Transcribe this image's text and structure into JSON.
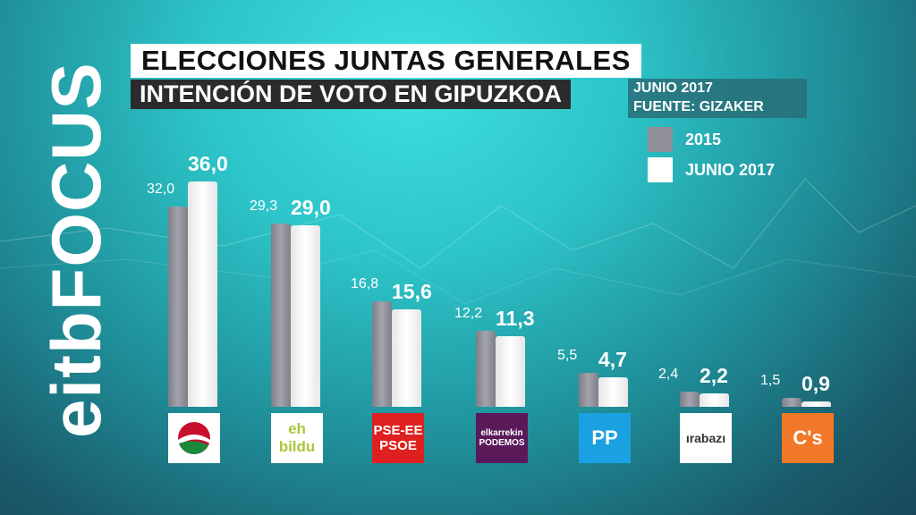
{
  "brand": "eitbFOCUS",
  "title": "ELECCIONES JUNTAS GENERALES",
  "subtitle": "INTENCIÓN DE VOTO EN GIPUZKOA",
  "source": {
    "date": "JUNIO 2017",
    "source": "FUENTE: GIZAKER"
  },
  "colors": {
    "s2015": "#8e8f99",
    "s2017": "#ffffff"
  },
  "logos": [
    {
      "name": "PNV",
      "text": ""
    },
    {
      "name": "EH Bildu",
      "text": "eh bildu"
    },
    {
      "name": "PSE-EE PSOE",
      "text": "PSE-EE PSOE"
    },
    {
      "name": "Elkarrekin Podemos",
      "text": "elkarrekin PODEMOS"
    },
    {
      "name": "PP",
      "text": "PP"
    },
    {
      "name": "Irabazi",
      "text": "ırabazı"
    },
    {
      "name": "Cs",
      "text": "C's"
    }
  ],
  "chart_data": {
    "type": "bar",
    "categories": [
      "PNV",
      "EH Bildu",
      "PSE-EE PSOE",
      "Elkarrekin Podemos",
      "PP",
      "Irabazi",
      "Cs"
    ],
    "series": [
      {
        "name": "2015",
        "values": [
          32.0,
          29.3,
          16.8,
          12.2,
          5.5,
          2.4,
          1.5
        ],
        "labels": [
          "32,0",
          "29,3",
          "16,8",
          "12,2",
          "5,5",
          "2,4",
          "1,5"
        ]
      },
      {
        "name": "JUNIO 2017",
        "values": [
          36.0,
          29.0,
          15.6,
          11.3,
          4.7,
          2.2,
          0.9
        ],
        "labels": [
          "36,0",
          "29,0",
          "15,6",
          "11,3",
          "4,7",
          "2,2",
          "0,9"
        ]
      }
    ],
    "title": "INTENCIÓN DE VOTO EN GIPUZKOA",
    "legend": "top-right",
    "grid": false
  }
}
